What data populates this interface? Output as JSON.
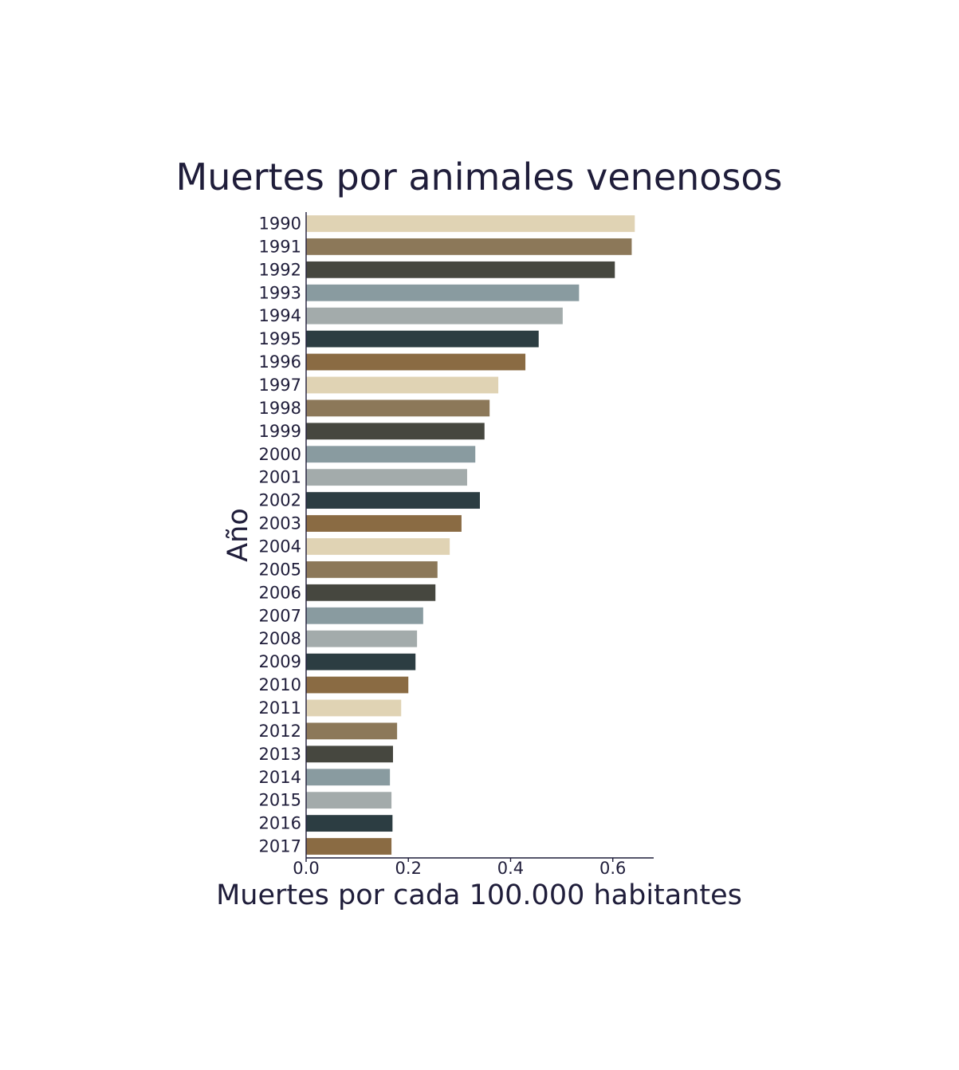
{
  "chart_data": {
    "type": "bar",
    "orientation": "horizontal",
    "title": "Muertes por animales venenosos",
    "xlabel": "Muertes por cada 100.000 habitantes",
    "ylabel": "Año",
    "xlim": [
      0,
      0.68
    ],
    "xticks": [
      "0.0",
      "0.2",
      "0.4",
      "0.6"
    ],
    "grid": false,
    "categories": [
      "1990",
      "1991",
      "1992",
      "1993",
      "1994",
      "1995",
      "1996",
      "1997",
      "1998",
      "1999",
      "2000",
      "2001",
      "2002",
      "2003",
      "2004",
      "2005",
      "2006",
      "2007",
      "2008",
      "2009",
      "2010",
      "2011",
      "2012",
      "2013",
      "2014",
      "2015",
      "2016",
      "2017"
    ],
    "values": [
      0.643,
      0.637,
      0.604,
      0.534,
      0.502,
      0.455,
      0.429,
      0.376,
      0.359,
      0.349,
      0.331,
      0.315,
      0.34,
      0.304,
      0.281,
      0.257,
      0.253,
      0.229,
      0.217,
      0.214,
      0.2,
      0.186,
      0.178,
      0.17,
      0.164,
      0.167,
      0.169,
      0.167
    ],
    "colors": [
      "#e0d3b4",
      "#8c7859",
      "#46473f",
      "#899ba0",
      "#a3abab",
      "#2c3d42",
      "#8a6b43"
    ]
  }
}
